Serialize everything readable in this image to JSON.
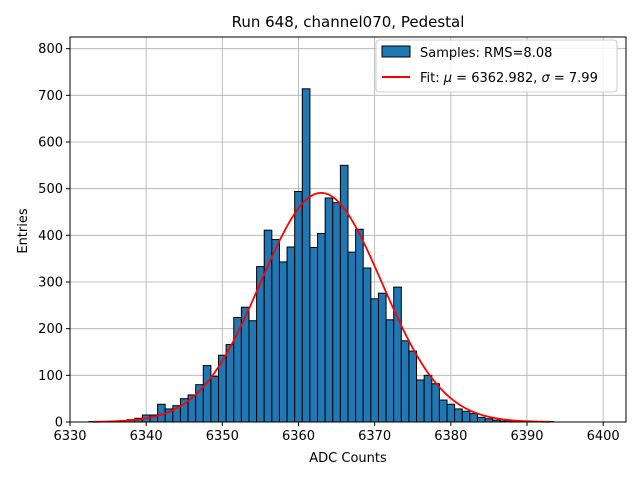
{
  "chart_data": {
    "type": "bar",
    "title": "Run 648, channel070, Pedestal",
    "xlabel": "ADC Counts",
    "ylabel": "Entries",
    "xlim": [
      6330,
      6403
    ],
    "ylim": [
      0,
      825
    ],
    "x_ticks": [
      6330,
      6340,
      6350,
      6360,
      6370,
      6380,
      6390,
      6400
    ],
    "y_ticks": [
      0,
      100,
      200,
      300,
      400,
      500,
      600,
      700,
      800
    ],
    "grid": true,
    "legend_position": "top-right",
    "bar_color": "#1f77b4",
    "fit_color": "#ff0000",
    "series": [
      {
        "name": "Samples: RMS=8.08",
        "type": "histogram",
        "bin_width": 1,
        "bin_centers": [
          6333,
          6334,
          6335,
          6336,
          6337,
          6338,
          6339,
          6340,
          6341,
          6342,
          6343,
          6344,
          6345,
          6346,
          6347,
          6348,
          6349,
          6350,
          6351,
          6352,
          6353,
          6354,
          6355,
          6356,
          6357,
          6358,
          6359,
          6360,
          6361,
          6362,
          6363,
          6364,
          6365,
          6366,
          6367,
          6368,
          6369,
          6370,
          6371,
          6372,
          6373,
          6374,
          6375,
          6376,
          6377,
          6378,
          6379,
          6380,
          6381,
          6382,
          6383,
          6384,
          6385,
          6386,
          6387,
          6388,
          6389,
          6390,
          6391,
          6392,
          6393
        ],
        "values": [
          1,
          0,
          1,
          1,
          2,
          5,
          8,
          15,
          15,
          38,
          28,
          35,
          50,
          58,
          80,
          121,
          98,
          143,
          166,
          224,
          246,
          217,
          333,
          411,
          391,
          343,
          375,
          494,
          714,
          374,
          404,
          480,
          470,
          550,
          364,
          413,
          330,
          264,
          276,
          219,
          289,
          174,
          152,
          90,
          100,
          82,
          47,
          38,
          28,
          23,
          18,
          10,
          7,
          4,
          2,
          2,
          1,
          0,
          0,
          0,
          1
        ]
      },
      {
        "name": "Fit: μ = 6362.982, σ = 7.99",
        "type": "gaussian",
        "mu": 6362.982,
        "sigma": 7.99,
        "amplitude": 491,
        "x_range": [
          6333,
          6393
        ]
      }
    ],
    "legend_labels": {
      "samples_text": "Samples: RMS=8.08",
      "fit_prefix": "Fit: ",
      "fit_mu_symbol": "μ",
      "fit_mu_rest": " = 6362.982, ",
      "fit_sigma_symbol": "σ",
      "fit_sigma_rest": " = 7.99"
    }
  }
}
